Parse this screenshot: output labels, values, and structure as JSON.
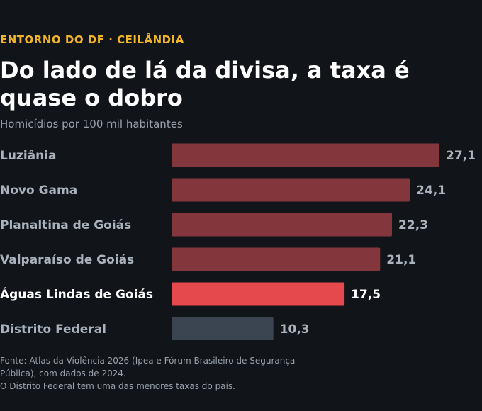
{
  "header": {
    "kicker": "ENTORNO DO DF · CEILÂNDIA",
    "title": "Do lado de lá da divisa, a taxa é quase o dobro",
    "subtitle": "Homicídios por 100 mil habitantes"
  },
  "chart_data": {
    "type": "bar",
    "orientation": "horizontal",
    "categories": [
      "Luziânia",
      "Novo Gama",
      "Planaltina de Goiás",
      "Valparaíso de Goiás",
      "Águas Lindas de Goiás",
      "Distrito Federal"
    ],
    "values": [
      27.1,
      24.1,
      22.3,
      21.1,
      17.5,
      10.3
    ],
    "value_labels": [
      "27,1",
      "24,1",
      "22,3",
      "21,1",
      "17,5",
      "10,3"
    ],
    "highlight_index": 4,
    "colors": {
      "default_bar": "#84363d",
      "highlight_bar": "#e5484d",
      "reference_bar": "#3b4552",
      "default_label": "#aab3bd",
      "highlight_label": "#ffffff"
    },
    "xlim": [
      0,
      27.1
    ],
    "grid": false,
    "legend": "none"
  },
  "footer": {
    "source": "Fonte: Atlas da Violência 2026 (Ipea e Fórum Brasileiro de Segurança Pública), com dados de 2024.",
    "note": "O Distrito Federal tem uma das menores taxas do país."
  }
}
